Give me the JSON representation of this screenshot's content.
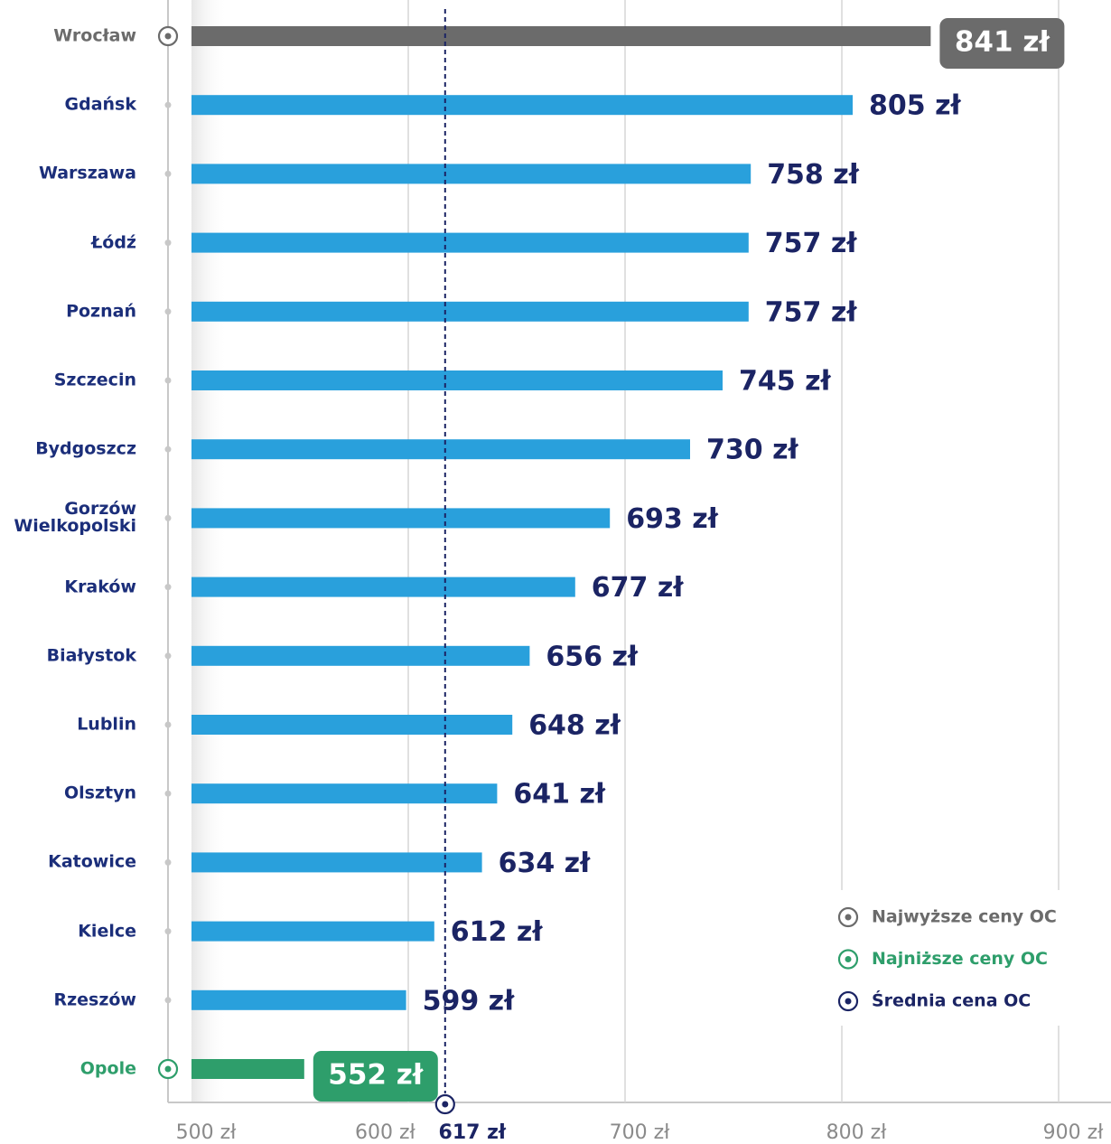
{
  "chart_data": {
    "type": "bar",
    "orientation": "horizontal",
    "categories": [
      "Wrocław",
      "Gdańsk",
      "Warszawa",
      "Łódź",
      "Poznań",
      "Szczecin",
      "Bydgoszcz",
      "Gorzów Wielkopolski",
      "Kraków",
      "Białystok",
      "Lublin",
      "Olsztyn",
      "Katowice",
      "Kielce",
      "Rzeszów",
      "Opole"
    ],
    "values": [
      841,
      805,
      758,
      757,
      757,
      745,
      730,
      693,
      677,
      656,
      648,
      641,
      634,
      612,
      599,
      552
    ],
    "value_labels": [
      "841 zł",
      "805 zł",
      "758 zł",
      "757 zł",
      "757 zł",
      "745 zł",
      "730 zł",
      "693 zł",
      "677 zł",
      "656 zł",
      "648 zł",
      "641 zł",
      "634 zł",
      "612 zł",
      "599 zł",
      "552 zł"
    ],
    "color": "#29a0dc",
    "colors": [
      "#6b6b6b",
      "#29a0dc",
      "#29a0dc",
      "#29a0dc",
      "#29a0dc",
      "#29a0dc",
      "#29a0dc",
      "#29a0dc",
      "#29a0dc",
      "#29a0dc",
      "#29a0dc",
      "#29a0dc",
      "#29a0dc",
      "#29a0dc",
      "#29a0dc",
      "#2e9e6b"
    ],
    "xlim": [
      500,
      900
    ],
    "xticks": [
      {
        "value": 500,
        "label": "500 zł"
      },
      {
        "value": 600,
        "label": "600 zł"
      },
      {
        "value": 700,
        "label": "700 zł"
      },
      {
        "value": 800,
        "label": "800 zł"
      },
      {
        "value": 900,
        "label": "900 zł"
      }
    ],
    "grid": true,
    "average": {
      "value": 617,
      "label": "617 zł",
      "color": "#1b2464"
    },
    "legend_position": "lower right",
    "legend": [
      {
        "label": "Najwyższe ceny OC",
        "color": "#6b6b6b"
      },
      {
        "label": "Najniższe ceny OC",
        "color": "#2e9e6b"
      },
      {
        "label": "Średnia cena OC",
        "color": "#1b2464"
      }
    ]
  }
}
